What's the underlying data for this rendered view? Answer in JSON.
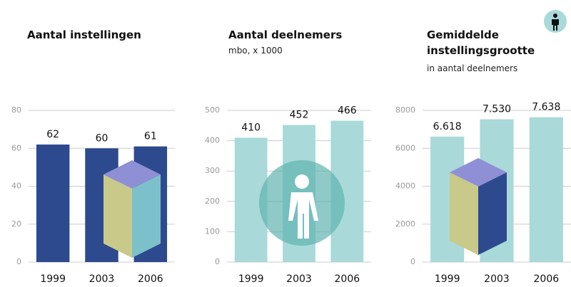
{
  "chart_data": [
    {
      "type": "bar",
      "title": "Aantal instellingen",
      "categories": [
        "1999",
        "2003",
        "2006"
      ],
      "values": [
        62,
        60,
        61
      ],
      "color": "#2d4a8e",
      "ylim": [
        0,
        80
      ],
      "yticks": [
        0,
        20,
        40,
        60,
        80
      ],
      "grid": true
    },
    {
      "type": "bar",
      "title": "Aantal deelnemers",
      "subtitle": "mbo, x 1000",
      "categories": [
        "1999",
        "2003",
        "2006"
      ],
      "values": [
        410,
        452,
        466
      ],
      "color": "#a9d9d9",
      "ylim": [
        0,
        500
      ],
      "yticks": [
        0,
        100,
        200,
        300,
        400,
        500
      ],
      "grid": true
    },
    {
      "type": "bar",
      "title": "Gemiddelde instellingsgrootte",
      "subtitle": "in aantal deelnemers",
      "categories": [
        "1999",
        "2003",
        "2006"
      ],
      "values": [
        6618,
        7530,
        7638
      ],
      "value_labels": [
        "6.618",
        "7.530",
        "7.638"
      ],
      "color": "#a9d9d9",
      "ylim": [
        0,
        8000
      ],
      "yticks": [
        0,
        2000,
        4000,
        6000,
        8000
      ],
      "grid": true
    }
  ]
}
